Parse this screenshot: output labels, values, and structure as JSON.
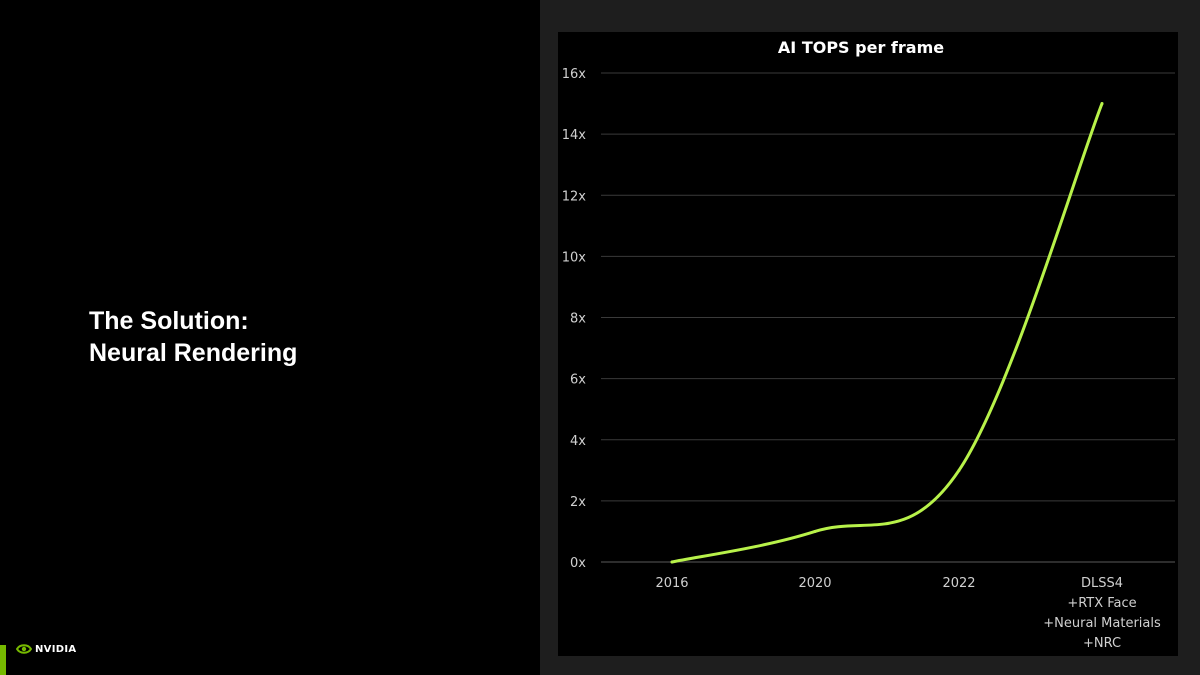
{
  "slide": {
    "title_line1": "The Solution:",
    "title_line2": "Neural Rendering"
  },
  "logo": {
    "text": "NVIDIA",
    "icon": "nvidia-eye-icon"
  },
  "colors": {
    "accent": "#76b900",
    "line": "#b8f24a",
    "panel": "#1e1e1e"
  },
  "chart_data": {
    "type": "line",
    "title": "AI TOPS per frame",
    "xlabel": "",
    "ylabel": "",
    "categories": [
      "2016",
      "2020",
      "2022",
      "DLSS4\n+RTX Face\n+Neural Materials\n+NRC"
    ],
    "values": [
      0,
      1,
      3,
      15
    ],
    "y_ticks": [
      "0x",
      "2x",
      "4x",
      "6x",
      "8x",
      "10x",
      "12x",
      "14x",
      "16x"
    ],
    "ylim": [
      0,
      16
    ],
    "grid": true,
    "legend": "none"
  }
}
